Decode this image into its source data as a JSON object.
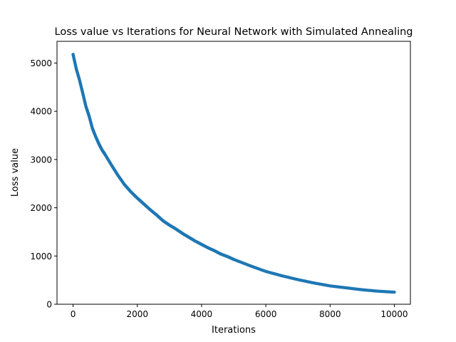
{
  "chart_data": {
    "type": "scatter",
    "title": "Loss value vs Iterations for Neural Network with Simulated Annealing",
    "xlabel": "Iterations",
    "ylabel": "Loss value",
    "xlim": [
      -500,
      10500
    ],
    "ylim": [
      0,
      5450
    ],
    "xticks": [
      0,
      2000,
      4000,
      6000,
      8000,
      10000
    ],
    "yticks": [
      0,
      1000,
      2000,
      3000,
      4000,
      5000
    ],
    "grid": false,
    "legend": "none",
    "series": [
      {
        "color": "#1f77b4",
        "x": [
          0,
          100,
          200,
          300,
          400,
          500,
          600,
          700,
          800,
          900,
          1000,
          1200,
          1400,
          1600,
          1800,
          2000,
          2200,
          2400,
          2600,
          2800,
          3000,
          3200,
          3400,
          3600,
          3800,
          4000,
          4200,
          4400,
          4600,
          4800,
          5000,
          5500,
          6000,
          6500,
          7000,
          7500,
          8000,
          8500,
          9000,
          9500,
          10000
        ],
        "y": [
          5180,
          4880,
          4650,
          4380,
          4100,
          3900,
          3650,
          3480,
          3330,
          3200,
          3100,
          2880,
          2670,
          2480,
          2330,
          2200,
          2080,
          1960,
          1850,
          1730,
          1640,
          1560,
          1470,
          1390,
          1310,
          1240,
          1170,
          1110,
          1040,
          990,
          930,
          800,
          680,
          590,
          510,
          440,
          380,
          340,
          300,
          270,
          250
        ]
      }
    ]
  }
}
